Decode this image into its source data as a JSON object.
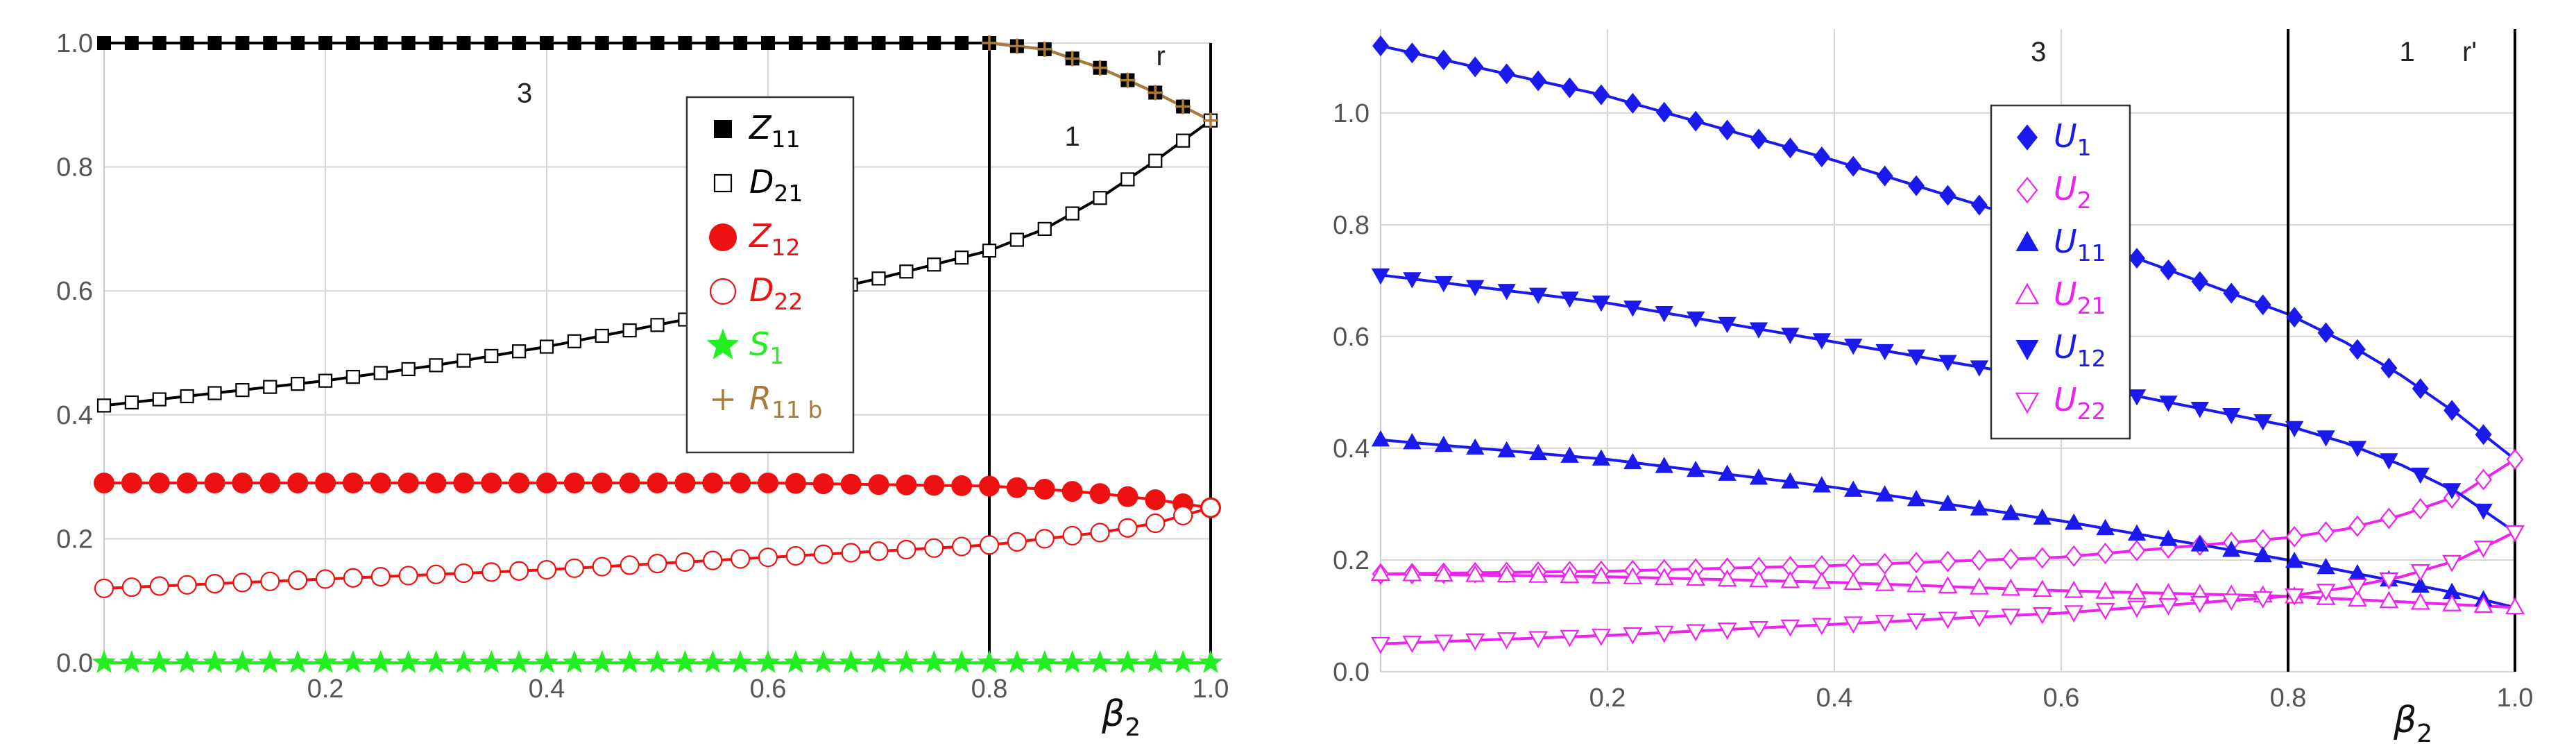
{
  "chart_data": [
    {
      "type": "line",
      "xlim": [
        0,
        1
      ],
      "ylim": [
        0,
        1
      ],
      "x_ticks": [
        "0.2",
        "0.4",
        "0.6",
        "0.8",
        "1.0"
      ],
      "y_ticks": [
        "0.0",
        "0.2",
        "0.4",
        "0.6",
        "0.8",
        "1.0"
      ],
      "xlabel": "β",
      "xlabel_sub": "2",
      "grid": true,
      "legend_position": "center",
      "vertical_lines": [
        0.8,
        1.0
      ],
      "region_labels": [
        {
          "text": "3",
          "x": 0.38,
          "y": 0.92
        },
        {
          "text": "1",
          "x": 0.875,
          "y": 0.85
        },
        {
          "text": "r",
          "x": 0.955,
          "y": 0.98
        }
      ],
      "series": [
        {
          "name": "Z",
          "sub": "11",
          "color": "#000000",
          "marker": "square-filled",
          "x": [
            0,
            0.2,
            0.4,
            0.6,
            0.8,
            0.85,
            0.9,
            0.95,
            1.0
          ],
          "y": [
            1.0,
            1.0,
            1.0,
            1.0,
            1.0,
            0.99,
            0.96,
            0.92,
            0.875
          ]
        },
        {
          "name": "D",
          "sub": "21",
          "color": "#000000",
          "marker": "square-open",
          "x": [
            0,
            0.1,
            0.2,
            0.3,
            0.4,
            0.5,
            0.6,
            0.7,
            0.8,
            0.85,
            0.9,
            0.95,
            1.0
          ],
          "y": [
            0.415,
            0.435,
            0.455,
            0.48,
            0.51,
            0.545,
            0.58,
            0.62,
            0.665,
            0.7,
            0.75,
            0.81,
            0.875
          ]
        },
        {
          "name": "Z",
          "sub": "12",
          "color": "#ee1111",
          "marker": "circle-filled",
          "x": [
            0,
            0.2,
            0.4,
            0.6,
            0.8,
            0.85,
            0.9,
            0.95,
            1.0
          ],
          "y": [
            0.29,
            0.29,
            0.29,
            0.29,
            0.285,
            0.28,
            0.273,
            0.263,
            0.25
          ]
        },
        {
          "name": "D",
          "sub": "22",
          "color": "#ee1111",
          "marker": "circle-open",
          "x": [
            0,
            0.2,
            0.4,
            0.6,
            0.8,
            0.85,
            0.9,
            0.95,
            1.0
          ],
          "y": [
            0.12,
            0.135,
            0.15,
            0.17,
            0.19,
            0.2,
            0.21,
            0.225,
            0.25
          ]
        },
        {
          "name": "S",
          "sub": "1",
          "color": "#22ee22",
          "marker": "star",
          "x": [
            0,
            0.2,
            0.4,
            0.6,
            0.8,
            1.0
          ],
          "y": [
            0,
            0,
            0,
            0,
            0,
            0
          ]
        },
        {
          "name": "R",
          "sub": "11 b",
          "color": "#a87b3a",
          "marker": "plus",
          "x": [
            0.8,
            0.85,
            0.9,
            0.95,
            1.0
          ],
          "y": [
            1.0,
            0.99,
            0.96,
            0.92,
            0.875
          ]
        }
      ]
    },
    {
      "type": "line",
      "xlim": [
        0,
        1
      ],
      "ylim": [
        0,
        1.15
      ],
      "x_ticks": [
        "0.2",
        "0.4",
        "0.6",
        "0.8",
        "1.0"
      ],
      "y_ticks": [
        "0.0",
        "0.2",
        "0.4",
        "0.6",
        "0.8",
        "1.0"
      ],
      "xlabel": "β",
      "xlabel_sub": "2",
      "grid": true,
      "legend_position": "center",
      "vertical_lines": [
        0.8,
        1.0
      ],
      "region_labels": [
        {
          "text": "3",
          "x": 0.58,
          "y": 1.11
        },
        {
          "text": "1",
          "x": 0.905,
          "y": 1.11
        },
        {
          "text": "r'",
          "x": 0.96,
          "y": 1.11
        }
      ],
      "series": [
        {
          "name": "U",
          "sub": "1",
          "color": "#1a1aee",
          "marker": "diamond-filled",
          "x": [
            0,
            0.2,
            0.4,
            0.6,
            0.8,
            0.85,
            0.9,
            0.95,
            1.0
          ],
          "y": [
            1.12,
            1.03,
            0.915,
            0.79,
            0.64,
            0.59,
            0.53,
            0.46,
            0.38
          ]
        },
        {
          "name": "U",
          "sub": "2",
          "color": "#ee22ee",
          "marker": "diamond-open",
          "x": [
            0,
            0.2,
            0.4,
            0.6,
            0.8,
            0.85,
            0.9,
            0.95,
            1.0
          ],
          "y": [
            0.175,
            0.18,
            0.19,
            0.205,
            0.24,
            0.255,
            0.28,
            0.315,
            0.38
          ]
        },
        {
          "name": "U",
          "sub": "11",
          "color": "#1a1aee",
          "marker": "triangle-up-filled",
          "x": [
            0,
            0.2,
            0.4,
            0.6,
            0.8,
            0.85,
            0.9,
            0.95,
            1.0
          ],
          "y": [
            0.415,
            0.38,
            0.33,
            0.27,
            0.2,
            0.18,
            0.16,
            0.14,
            0.115
          ]
        },
        {
          "name": "U",
          "sub": "21",
          "color": "#ee22ee",
          "marker": "triangle-up-open",
          "x": [
            0,
            0.2,
            0.4,
            0.6,
            0.8,
            0.85,
            0.9,
            0.95,
            1.0
          ],
          "y": [
            0.175,
            0.17,
            0.16,
            0.145,
            0.135,
            0.13,
            0.125,
            0.12,
            0.115
          ]
        },
        {
          "name": "U",
          "sub": "12",
          "color": "#1a1aee",
          "marker": "triangle-down-filled",
          "x": [
            0,
            0.2,
            0.4,
            0.6,
            0.8,
            0.85,
            0.9,
            0.95,
            1.0
          ],
          "y": [
            0.71,
            0.66,
            0.59,
            0.52,
            0.44,
            0.41,
            0.37,
            0.32,
            0.25
          ]
        },
        {
          "name": "U",
          "sub": "22",
          "color": "#ee22ee",
          "marker": "triangle-down-open",
          "x": [
            0,
            0.2,
            0.4,
            0.6,
            0.8,
            0.85,
            0.9,
            0.95,
            1.0
          ],
          "y": [
            0.05,
            0.065,
            0.085,
            0.105,
            0.135,
            0.15,
            0.17,
            0.2,
            0.25
          ]
        }
      ]
    }
  ]
}
